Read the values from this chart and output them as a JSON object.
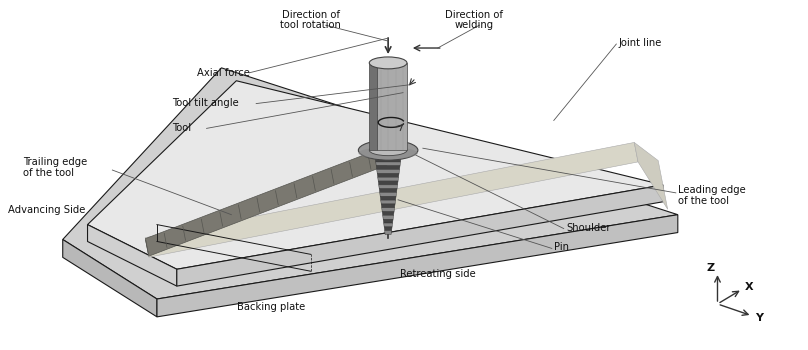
{
  "title": "",
  "background_color": "#ffffff",
  "labels": {
    "direction_tool_rotation": "Direction of\ntool rotation",
    "direction_welding": "Direction of\nwelding",
    "joint_line": "Joint line",
    "axial_force": "Axial force",
    "tool_tilt_angle": "Tool tilt angle",
    "tool": "Tool",
    "trailing_edge": "Trailing edge\nof the tool",
    "advancing_side": "Advancing Side",
    "leading_edge": "Leading edge\nof the tool",
    "shoulder": "Shoulder",
    "pin": "Pin",
    "retreating_side": "Retreating side",
    "backing_plate": "Backing plate",
    "z_axis": "Z",
    "x_axis": "X",
    "y_axis": "Y"
  },
  "colors": {
    "wp_top": "#e8e8e8",
    "wp_front": "#d0d0d0",
    "wp_right": "#c8c8c8",
    "bk_top": "#d0d0d0",
    "bk_front": "#b8b8b8",
    "bk_right": "#c0c0c0",
    "joint_stripe": "#d0cfc0",
    "weld_seam": "#888880",
    "tool_cyl": "#aaaaaa",
    "tool_top": "#cccccc",
    "tool_dark": "#707070",
    "shoulder_col": "#999999",
    "pin_light": "#888888",
    "pin_dark": "#444444",
    "line_color": "#1a1a1a",
    "text_color": "#111111",
    "arrow_color": "#333333"
  },
  "figsize": [
    8.08,
    3.5
  ],
  "dpi": 100
}
